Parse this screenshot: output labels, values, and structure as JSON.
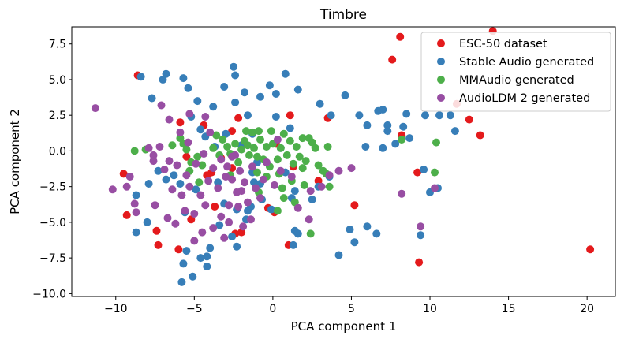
{
  "chart_data": {
    "type": "scatter",
    "title": "Timbre",
    "xlabel": "PCA component 1",
    "ylabel": "PCA component 2",
    "xlim": [
      -12.8,
      21.8
    ],
    "ylim": [
      -10.2,
      8.7
    ],
    "xticks": [
      -10,
      -5,
      0,
      5,
      10,
      15,
      20
    ],
    "xtick_labels": [
      "−10",
      "−5",
      "0",
      "5",
      "10",
      "15",
      "20"
    ],
    "yticks": [
      -10.0,
      -7.5,
      -5.0,
      -2.5,
      0.0,
      2.5,
      5.0,
      7.5
    ],
    "ytick_labels": [
      "−10.0",
      "−7.5",
      "−5.0",
      "−2.5",
      "0.0",
      "2.5",
      "5.0",
      "7.5"
    ],
    "grid": false,
    "legend_position": "top-right",
    "series": [
      {
        "name": "ESC-50 dataset",
        "color": "#e41a1c",
        "points": [
          [
            8.1,
            8.0
          ],
          [
            14.0,
            8.4
          ],
          [
            7.6,
            6.4
          ],
          [
            11.7,
            3.3
          ],
          [
            12.5,
            2.2
          ],
          [
            13.2,
            1.1
          ],
          [
            8.2,
            1.1
          ],
          [
            3.5,
            2.3
          ],
          [
            -8.6,
            5.3
          ],
          [
            -5.9,
            2.0
          ],
          [
            -2.2,
            2.3
          ],
          [
            -2.6,
            1.4
          ],
          [
            1.1,
            2.5
          ],
          [
            0.2,
            0.5
          ],
          [
            -4.4,
            1.8
          ],
          [
            -9.5,
            -1.6
          ],
          [
            -9.3,
            -4.5
          ],
          [
            -7.4,
            -5.6
          ],
          [
            -7.3,
            -6.6
          ],
          [
            -6.0,
            -6.9
          ],
          [
            -5.2,
            -4.8
          ],
          [
            -3.9,
            -1.5
          ],
          [
            -3.7,
            -3.9
          ],
          [
            -2.6,
            -1.2
          ],
          [
            -2.4,
            -5.8
          ],
          [
            -2.0,
            -5.7
          ],
          [
            -0.3,
            -4.0
          ],
          [
            0.1,
            -4.3
          ],
          [
            1.3,
            -1.1
          ],
          [
            1.0,
            -6.6
          ],
          [
            2.9,
            -2.1
          ],
          [
            5.2,
            -3.8
          ],
          [
            9.3,
            -7.8
          ],
          [
            9.2,
            -1.5
          ],
          [
            20.2,
            -6.9
          ],
          [
            -3.3,
            -0.5
          ],
          [
            -4.2,
            -1.7
          ],
          [
            -5.5,
            -0.4
          ]
        ]
      },
      {
        "name": "Stable Audio generated",
        "color": "#377eb8",
        "points": [
          [
            -8.4,
            5.2
          ],
          [
            -6.8,
            5.4
          ],
          [
            -7.0,
            5.0
          ],
          [
            -7.7,
            3.7
          ],
          [
            -5.7,
            5.1
          ],
          [
            -5.4,
            4.4
          ],
          [
            -4.8,
            3.5
          ],
          [
            -5.2,
            2.4
          ],
          [
            -4.6,
            1.5
          ],
          [
            -4.3,
            1.0
          ],
          [
            -3.8,
            3.1
          ],
          [
            -3.1,
            4.5
          ],
          [
            -2.5,
            5.9
          ],
          [
            -2.4,
            5.3
          ],
          [
            -1.8,
            4.1
          ],
          [
            -2.4,
            3.4
          ],
          [
            -1.6,
            2.5
          ],
          [
            -1.3,
            1.2
          ],
          [
            -0.8,
            3.8
          ],
          [
            -0.2,
            4.6
          ],
          [
            0.2,
            4.0
          ],
          [
            0.8,
            5.4
          ],
          [
            0.2,
            2.4
          ],
          [
            1.1,
            1.6
          ],
          [
            1.6,
            4.3
          ],
          [
            3.0,
            3.3
          ],
          [
            3.7,
            2.5
          ],
          [
            4.6,
            3.9
          ],
          [
            5.5,
            2.5
          ],
          [
            6.0,
            1.8
          ],
          [
            6.7,
            2.8
          ],
          [
            7.0,
            2.9
          ],
          [
            7.3,
            1.8
          ],
          [
            7.3,
            1.4
          ],
          [
            7.8,
            0.5
          ],
          [
            8.3,
            1.7
          ],
          [
            8.5,
            2.6
          ],
          [
            9.7,
            2.5
          ],
          [
            10.6,
            2.5
          ],
          [
            11.3,
            2.5
          ],
          [
            11.6,
            1.4
          ],
          [
            5.9,
            0.3
          ],
          [
            7.0,
            0.2
          ],
          [
            8.7,
            0.9
          ],
          [
            9.6,
            -1.3
          ],
          [
            10.5,
            -2.6
          ],
          [
            -3.7,
            0.3
          ],
          [
            -3.0,
            1.2
          ],
          [
            -2.0,
            0.4
          ],
          [
            -1.3,
            -1.5
          ],
          [
            -1.2,
            -2.2
          ],
          [
            -0.7,
            -3.4
          ],
          [
            -1.4,
            -3.9
          ],
          [
            -1.6,
            -4.2
          ],
          [
            -1.7,
            -4.8
          ],
          [
            -2.3,
            -4.1
          ],
          [
            -2.6,
            -6.0
          ],
          [
            -2.3,
            -6.7
          ],
          [
            -3.4,
            -5.2
          ],
          [
            -4.0,
            -6.8
          ],
          [
            -4.2,
            -7.4
          ],
          [
            -4.6,
            -7.5
          ],
          [
            -5.5,
            -7.0
          ],
          [
            -5.7,
            -7.9
          ],
          [
            -5.1,
            -8.8
          ],
          [
            -5.8,
            -9.2
          ],
          [
            -4.2,
            -8.1
          ],
          [
            -8.7,
            -5.7
          ],
          [
            -8.0,
            -5.0
          ],
          [
            -7.9,
            -2.3
          ],
          [
            -8.7,
            -3.1
          ],
          [
            -7.3,
            -1.4
          ],
          [
            -6.3,
            -1.7
          ],
          [
            -6.8,
            -2.0
          ],
          [
            -5.9,
            -2.3
          ],
          [
            -5.6,
            -4.3
          ],
          [
            -4.9,
            -2.7
          ],
          [
            -3.5,
            -2.2
          ],
          [
            -3.1,
            -3.7
          ],
          [
            -0.8,
            -2.3
          ],
          [
            -0.1,
            -4.1
          ],
          [
            0.8,
            -1.5
          ],
          [
            1.2,
            -3.3
          ],
          [
            1.4,
            -5.6
          ],
          [
            1.6,
            -5.8
          ],
          [
            1.3,
            -6.6
          ],
          [
            2.5,
            -3.4
          ],
          [
            2.9,
            -2.5
          ],
          [
            3.6,
            -1.8
          ],
          [
            4.2,
            -7.3
          ],
          [
            4.9,
            -5.5
          ],
          [
            5.2,
            -6.4
          ],
          [
            6.0,
            -5.3
          ],
          [
            6.6,
            -5.8
          ],
          [
            9.4,
            -5.9
          ],
          [
            10.0,
            -2.9
          ],
          [
            1.4,
            -2.8
          ],
          [
            -1.0,
            -0.8
          ],
          [
            0.5,
            0.2
          ]
        ]
      },
      {
        "name": "MMAudio generated",
        "color": "#4daf4a",
        "points": [
          [
            -8.8,
            0.0
          ],
          [
            -8.1,
            0.1
          ],
          [
            -6.4,
            0.4
          ],
          [
            -5.9,
            0.9
          ],
          [
            -5.7,
            0.5
          ],
          [
            -5.5,
            0.1
          ],
          [
            -5.2,
            -0.8
          ],
          [
            -4.8,
            -0.4
          ],
          [
            -4.5,
            -1.0
          ],
          [
            -3.8,
            0.2
          ],
          [
            -3.4,
            -0.3
          ],
          [
            -3.2,
            0.8
          ],
          [
            -2.9,
            0.3
          ],
          [
            -2.7,
            -0.2
          ],
          [
            -2.4,
            0.5
          ],
          [
            -2.2,
            -0.8
          ],
          [
            -2.0,
            0.1
          ],
          [
            -1.8,
            0.7
          ],
          [
            -1.6,
            0.4
          ],
          [
            -1.5,
            -0.3
          ],
          [
            -1.3,
            1.3
          ],
          [
            -1.2,
            0.2
          ],
          [
            -1.0,
            -0.4
          ],
          [
            -0.8,
            0.8
          ],
          [
            -0.6,
            -0.6
          ],
          [
            -0.4,
            0.3
          ],
          [
            -0.2,
            -1.1
          ],
          [
            0.0,
            0.5
          ],
          [
            0.3,
            -0.6
          ],
          [
            0.5,
            0.2
          ],
          [
            0.7,
            1.2
          ],
          [
            0.9,
            -0.3
          ],
          [
            1.1,
            0.7
          ],
          [
            1.3,
            -0.9
          ],
          [
            1.5,
            0.3
          ],
          [
            1.7,
            -0.4
          ],
          [
            1.9,
            0.9
          ],
          [
            2.1,
            -0.7
          ],
          [
            2.3,
            0.9
          ],
          [
            2.5,
            0.6
          ],
          [
            2.7,
            0.2
          ],
          [
            2.9,
            -1.0
          ],
          [
            3.2,
            -1.4
          ],
          [
            3.4,
            -1.6
          ],
          [
            3.5,
            0.3
          ],
          [
            -0.9,
            1.4
          ],
          [
            -1.7,
            1.4
          ],
          [
            -0.1,
            1.4
          ],
          [
            -0.4,
            -1.8
          ],
          [
            0.6,
            -2.6
          ],
          [
            1.2,
            -2.1
          ],
          [
            0.4,
            -1.6
          ],
          [
            -1.0,
            -1.5
          ],
          [
            -2.7,
            -1.7
          ],
          [
            -4.7,
            -2.2
          ],
          [
            -5.3,
            -1.4
          ],
          [
            1.9,
            -1.2
          ],
          [
            2.0,
            -2.4
          ],
          [
            0.7,
            -3.3
          ],
          [
            0.3,
            -4.2
          ],
          [
            1.4,
            -3.6
          ],
          [
            2.4,
            -5.8
          ],
          [
            3.6,
            -2.5
          ],
          [
            -0.9,
            -2.9
          ],
          [
            10.4,
            0.6
          ],
          [
            10.3,
            -1.5
          ],
          [
            8.2,
            0.8
          ],
          [
            -3.6,
            1.1
          ]
        ]
      },
      {
        "name": "AudioLDM 2 generated",
        "color": "#984ea3",
        "points": [
          [
            -11.3,
            3.0
          ],
          [
            -7.1,
            3.2
          ],
          [
            -6.6,
            2.2
          ],
          [
            -5.9,
            1.3
          ],
          [
            -5.4,
            0.6
          ],
          [
            -5.3,
            2.6
          ],
          [
            -4.3,
            2.4
          ],
          [
            -4.0,
            1.3
          ],
          [
            -7.9,
            0.2
          ],
          [
            -7.6,
            -0.3
          ],
          [
            -7.6,
            -0.7
          ],
          [
            -7.2,
            0.3
          ],
          [
            -6.9,
            -1.3
          ],
          [
            -6.6,
            -0.7
          ],
          [
            -6.4,
            -2.7
          ],
          [
            -6.1,
            -1.0
          ],
          [
            -5.8,
            -3.1
          ],
          [
            -5.5,
            -1.7
          ],
          [
            -5.3,
            -2.5
          ],
          [
            -4.9,
            -0.9
          ],
          [
            -4.6,
            -3.1
          ],
          [
            -4.4,
            -0.2
          ],
          [
            -4.1,
            -2.1
          ],
          [
            -3.8,
            -1.2
          ],
          [
            -3.5,
            -2.6
          ],
          [
            -3.3,
            -0.6
          ],
          [
            -3.0,
            -1.8
          ],
          [
            -2.8,
            -3.8
          ],
          [
            -2.6,
            -0.4
          ],
          [
            -2.3,
            -2.9
          ],
          [
            -2.1,
            -1.4
          ],
          [
            -1.8,
            -2.2
          ],
          [
            -1.6,
            -3.6
          ],
          [
            -1.3,
            -1.1
          ],
          [
            -1.1,
            -2.6
          ],
          [
            -0.8,
            -3.3
          ],
          [
            -0.6,
            -2.0
          ],
          [
            -0.4,
            -0.8
          ],
          [
            0.1,
            -2.4
          ],
          [
            0.3,
            0.8
          ],
          [
            0.5,
            -1.4
          ],
          [
            -9.3,
            -2.5
          ],
          [
            -9.1,
            -1.8
          ],
          [
            -10.2,
            -2.7
          ],
          [
            -8.8,
            -3.7
          ],
          [
            -8.7,
            -4.3
          ],
          [
            -7.5,
            -3.8
          ],
          [
            -6.7,
            -4.7
          ],
          [
            -6.2,
            -5.1
          ],
          [
            -5.6,
            -4.2
          ],
          [
            -5.0,
            -4.4
          ],
          [
            -4.3,
            -3.8
          ],
          [
            -3.8,
            -5.4
          ],
          [
            -3.3,
            -4.6
          ],
          [
            -2.8,
            -5.0
          ],
          [
            -2.2,
            -3.9
          ],
          [
            -1.9,
            -5.3
          ],
          [
            -1.4,
            -4.8
          ],
          [
            -3.1,
            -6.1
          ],
          [
            -4.5,
            -5.7
          ],
          [
            -5.0,
            -6.3
          ],
          [
            -2.6,
            -2.0
          ],
          [
            -2.9,
            -1.1
          ],
          [
            -2.0,
            -2.8
          ],
          [
            1.2,
            -1.8
          ],
          [
            2.4,
            -2.8
          ],
          [
            3.1,
            -2.5
          ],
          [
            3.6,
            -1.7
          ],
          [
            4.2,
            -1.4
          ],
          [
            5.0,
            -1.2
          ],
          [
            8.2,
            -3.0
          ],
          [
            9.4,
            -5.3
          ],
          [
            10.3,
            -2.6
          ],
          [
            1.6,
            -4.0
          ],
          [
            2.3,
            -4.8
          ],
          [
            -2.4,
            -0.3
          ]
        ]
      }
    ]
  }
}
